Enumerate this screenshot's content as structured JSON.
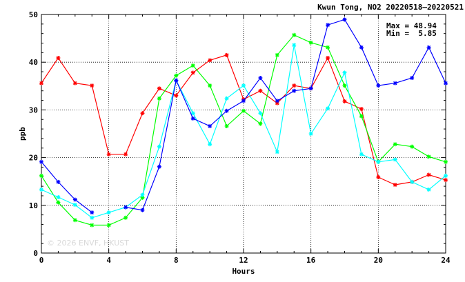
{
  "chart_data": {
    "type": "line",
    "title": "Kwun Tong, NO2 20220518–20220521",
    "xlabel": "Hours",
    "ylabel": "ppb",
    "xlim": [
      0,
      24
    ],
    "ylim": [
      0,
      50
    ],
    "x_ticks": [
      "0",
      "4",
      "8",
      "12",
      "16",
      "20",
      "24"
    ],
    "y_ticks": [
      "0",
      "10",
      "20",
      "30",
      "40",
      "50"
    ],
    "grid": true,
    "annotation": {
      "max_label": "Max = 48.94",
      "min_label": "Min =  5.85"
    },
    "watermark": "© 2026 ENVF, HKUST",
    "x": [
      0,
      1,
      2,
      3,
      4,
      5,
      6,
      7,
      8,
      9,
      10,
      11,
      12,
      13,
      14,
      15,
      16,
      17,
      18,
      19,
      20,
      21,
      22,
      23,
      24
    ],
    "series": [
      {
        "color": "#ff0000",
        "values": [
          35.6,
          40.9,
          35.6,
          35.1,
          20.7,
          20.7,
          29.3,
          34.5,
          33.0,
          37.8,
          40.4,
          41.5,
          32.2,
          34.0,
          31.4,
          35.1,
          34.5,
          40.9,
          31.8,
          30.2,
          15.9,
          14.3,
          14.9,
          16.4,
          15.3
        ]
      },
      {
        "color": "#00ff00",
        "values": [
          16.2,
          10.6,
          6.9,
          5.85,
          5.85,
          7.4,
          11.6,
          32.4,
          37.2,
          39.3,
          35.1,
          26.6,
          29.8,
          27.1,
          41.5,
          45.7,
          44.1,
          43.1,
          35.1,
          28.7,
          19.1,
          22.8,
          22.3,
          20.2,
          19.1
        ]
      },
      {
        "color": "#00ffff",
        "values": [
          13.3,
          11.7,
          10.1,
          7.4,
          8.5,
          9.6,
          12.2,
          22.3,
          36.2,
          29.3,
          22.8,
          32.4,
          35.1,
          29.3,
          21.2,
          43.6,
          25.0,
          30.3,
          37.8,
          20.7,
          19.1,
          19.6,
          14.9,
          13.3,
          16.2
        ]
      },
      {
        "color": "#0000ff",
        "values": [
          19.1,
          14.9,
          11.2,
          8.5,
          null,
          9.6,
          9.0,
          18.1,
          36.2,
          28.2,
          26.6,
          29.8,
          31.9,
          36.7,
          31.9,
          34.0,
          34.5,
          47.8,
          48.94,
          43.1,
          35.1,
          35.6,
          36.7,
          43.1,
          35.6
        ]
      }
    ]
  }
}
